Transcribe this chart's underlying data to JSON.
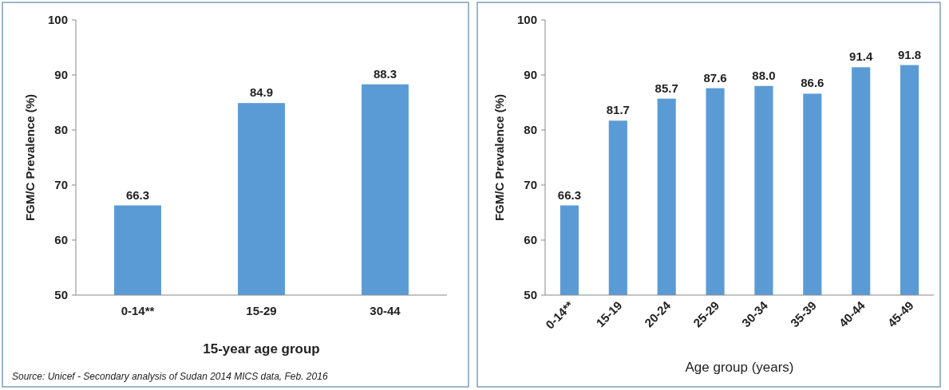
{
  "chart_data": [
    {
      "type": "bar",
      "xlabel": "15-year age group",
      "ylabel": "FGM/C Prevalence (%)",
      "categories": [
        "0-14**",
        "15-29",
        "30-44"
      ],
      "values": [
        66.3,
        84.9,
        88.3
      ],
      "color": "#5b9bd5",
      "ylim": [
        50,
        100
      ],
      "yticks": [
        50,
        60,
        70,
        80,
        90,
        100
      ],
      "data_labels": true,
      "grid": false,
      "annotations": [
        "Source: Unicef - Secondary analysis of Sudan 2014 MICS data, Feb. 2016"
      ]
    },
    {
      "type": "bar",
      "xlabel": "Age group (years)",
      "ylabel": "FGM/C Prevalence (%)",
      "categories": [
        "0-14**",
        "15-19",
        "20-24",
        "25-29",
        "30-34",
        "35-39",
        "40-44",
        "45-49"
      ],
      "values": [
        66.3,
        81.7,
        85.7,
        87.6,
        88.0,
        86.6,
        91.4,
        91.8
      ],
      "value_labels": [
        "66.3",
        "81.7",
        "85.7",
        "87.6",
        "88.0",
        "86.6",
        "91.4",
        "91.8"
      ],
      "color": "#5b9bd5",
      "ylim": [
        50,
        100
      ],
      "yticks": [
        50,
        60,
        70,
        80,
        90,
        100
      ],
      "grid": false
    }
  ]
}
